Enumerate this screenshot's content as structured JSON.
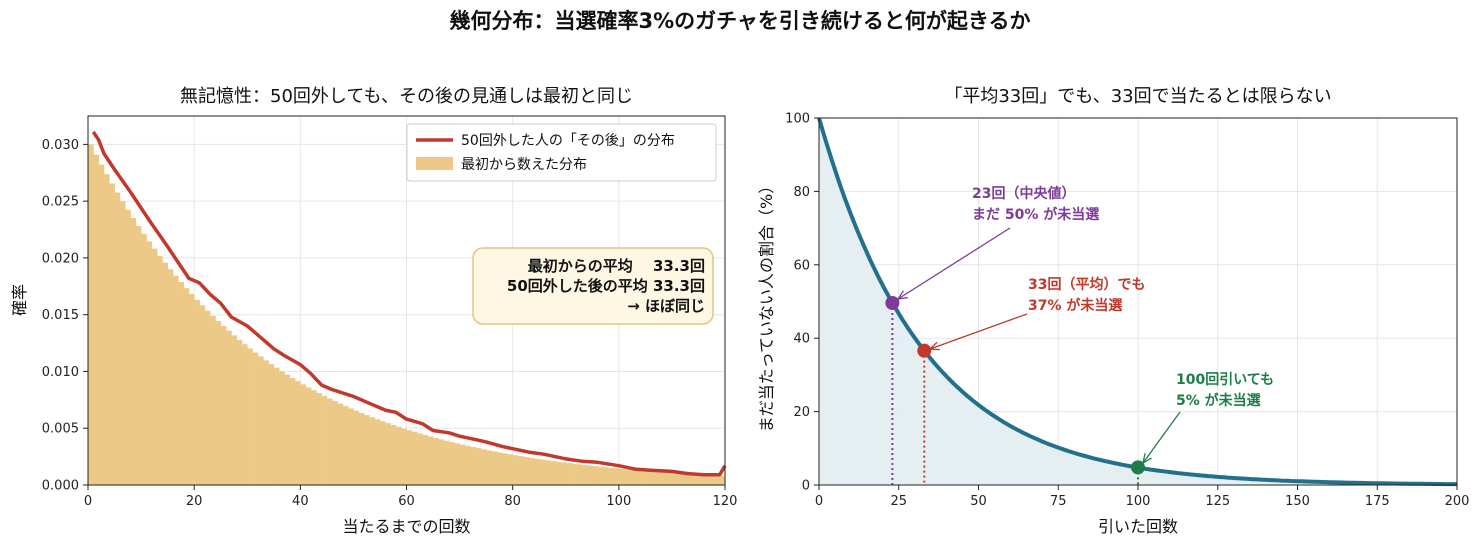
{
  "suptitle": "幾何分布：当選確率3%のガチャを引き続けると何が起きるか",
  "colors": {
    "hist": "#edc988",
    "memoryless_line": "#c0392b",
    "survival_line": "#21708c",
    "survival_fill": "#e2ecef",
    "median": "#7d3c98",
    "mean": "#c0392b",
    "hundred": "#1e7e4a",
    "statbox_bg": "#fdf7e4",
    "statbox_border": "#e0c77f"
  },
  "chart_data": [
    {
      "type": "bar",
      "title": "無記憶性：50回外しても、その後の見通しは最初と同じ",
      "xlabel": "当たるまでの回数",
      "ylabel": "確率",
      "xlim": [
        0,
        120
      ],
      "ylim": [
        0,
        0.0325
      ],
      "xticks": [
        "0",
        "20",
        "40",
        "60",
        "80",
        "100",
        "120"
      ],
      "yticks": [
        "0.000",
        "0.005",
        "0.010",
        "0.015",
        "0.020",
        "0.025",
        "0.030"
      ],
      "grid": true,
      "legend_position": "top-right",
      "p": 0.03,
      "series": [
        {
          "name": "50回外した人の「その後」の分布",
          "kind": "line",
          "points": [
            [
              1,
              0.0311
            ],
            [
              2,
              0.0304
            ],
            [
              3,
              0.0292
            ],
            [
              5,
              0.0278
            ],
            [
              8,
              0.0258
            ],
            [
              10,
              0.0244
            ],
            [
              12,
              0.023
            ],
            [
              15,
              0.021
            ],
            [
              17,
              0.0196
            ],
            [
              19,
              0.0182
            ],
            [
              21,
              0.0178
            ],
            [
              23,
              0.0168
            ],
            [
              25,
              0.016
            ],
            [
              27,
              0.0148
            ],
            [
              30,
              0.014
            ],
            [
              32,
              0.0132
            ],
            [
              35,
              0.012
            ],
            [
              37,
              0.0114
            ],
            [
              40,
              0.0106
            ],
            [
              42,
              0.0098
            ],
            [
              44,
              0.0088
            ],
            [
              46,
              0.0084
            ],
            [
              48,
              0.0081
            ],
            [
              50,
              0.0078
            ],
            [
              53,
              0.0072
            ],
            [
              56,
              0.0066
            ],
            [
              58,
              0.0064
            ],
            [
              60,
              0.0058
            ],
            [
              63,
              0.0054
            ],
            [
              65,
              0.0048
            ],
            [
              68,
              0.0046
            ],
            [
              70,
              0.0043
            ],
            [
              73,
              0.004
            ],
            [
              75,
              0.0038
            ],
            [
              78,
              0.0034
            ],
            [
              80,
              0.0032
            ],
            [
              83,
              0.0029
            ],
            [
              86,
              0.0027
            ],
            [
              90,
              0.0023
            ],
            [
              93,
              0.0021
            ],
            [
              96,
              0.002
            ],
            [
              100,
              0.0017
            ],
            [
              103,
              0.0014
            ],
            [
              106,
              0.0013
            ],
            [
              110,
              0.0012
            ],
            [
              113,
              0.001
            ],
            [
              116,
              0.0009
            ],
            [
              119,
              0.0009
            ],
            [
              120,
              0.0017
            ]
          ]
        },
        {
          "name": "最初から数えた分布",
          "kind": "hist",
          "bins": 120
        }
      ],
      "annotation": {
        "lines": [
          "最初からの平均　 33.3回",
          "50回外した後の平均  33.3回",
          "→ ほぼ同じ"
        ]
      }
    },
    {
      "type": "area",
      "title": "「平均33回」でも、33回で当たるとは限らない",
      "xlabel": "引いた回数",
      "ylabel": "まだ当たっていない人の割合（%）",
      "xlim": [
        0,
        200
      ],
      "ylim": [
        0,
        100
      ],
      "xticks": [
        "0",
        "25",
        "50",
        "75",
        "100",
        "125",
        "150",
        "175",
        "200"
      ],
      "yticks": [
        "0",
        "20",
        "40",
        "60",
        "80",
        "100"
      ],
      "grid": true,
      "series": [
        {
          "kind": "survival",
          "p": 0.03
        }
      ],
      "markers": [
        {
          "x": 23,
          "y": 49.6,
          "label": [
            "23回（中央値）",
            "まだ 50% が未当選"
          ]
        },
        {
          "x": 33,
          "y": 36.6,
          "label": [
            "33回（平均）でも",
            "37% が未当選"
          ]
        },
        {
          "x": 100,
          "y": 4.8,
          "label": [
            "100回引いても",
            "5% が未当選"
          ]
        }
      ]
    }
  ]
}
